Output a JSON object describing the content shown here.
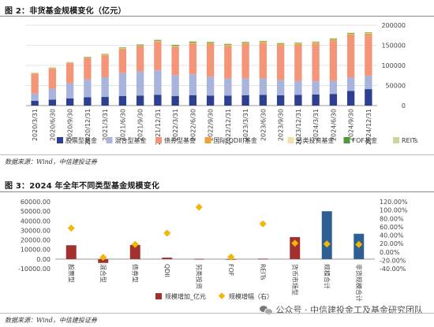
{
  "figure2": {
    "title": "图 2：非货基金规模变化（亿元）",
    "source": "数据来源：Wind，中信建投证券"
  },
  "figure3": {
    "title": "图 3：2024 年全年不同类型基金规模变化",
    "source": "数据来源：Wind，中信建投证券"
  },
  "watermark": {
    "text": "公众号 · 中信建投金工及基金研究团队",
    "icon": "wechat-icon"
  },
  "chart_data": [
    {
      "type": "bar",
      "stacked": true,
      "categories": [
        "2020/3/31",
        "2020/6/30",
        "2020/9/30",
        "2020/12/31",
        "2021/3/31",
        "2021/6/30",
        "2021/9/30",
        "2021/12/31",
        "2022/3/31",
        "2022/6/30",
        "2022/9/30",
        "2022/12/31",
        "2023/3/31",
        "2023/6/30",
        "2023/9/30",
        "2023/12/31",
        "2024/3/31",
        "2024/6/30",
        "2024/9/30",
        "2024/12/31"
      ],
      "ylim": [
        0,
        200000
      ],
      "yticks": [
        0,
        50000,
        100000,
        150000,
        200000
      ],
      "grid": true,
      "legend_position": "bottom",
      "series": [
        {
          "name": "股票型基金",
          "color": "#2f3f8f",
          "values": [
            12000,
            15000,
            18000,
            21000,
            21500,
            24000,
            25000,
            27000,
            24000,
            26000,
            25000,
            24500,
            26000,
            26500,
            25500,
            26500,
            27500,
            29000,
            36500,
            41000
          ]
        },
        {
          "name": "混合型基金",
          "color": "#a9b4dc",
          "values": [
            18000,
            27000,
            38000,
            44000,
            49000,
            57000,
            60000,
            61000,
            52000,
            52000,
            47000,
            43000,
            42000,
            41000,
            38000,
            35000,
            33000,
            32500,
            34000,
            33000
          ]
        },
        {
          "name": "债券型基金",
          "color": "#f4957a",
          "values": [
            49000,
            50000,
            49000,
            53000,
            54000,
            59000,
            62000,
            70000,
            69000,
            75000,
            80000,
            80000,
            84000,
            87000,
            86000,
            88500,
            92000,
            99000,
            103000,
            100000
          ]
        },
        {
          "name": "国际(QDII)基金",
          "color": "#e8a33a",
          "values": [
            1300,
            1400,
            1500,
            1700,
            1800,
            2000,
            2100,
            2200,
            2600,
            2800,
            2900,
            3000,
            3100,
            3200,
            3300,
            3500,
            3700,
            4000,
            4500,
            5000
          ]
        },
        {
          "name": "另类投资基金",
          "color": "#f5dfa6",
          "values": [
            900,
            950,
            1000,
            1000,
            1000,
            1050,
            1100,
            1150,
            1100,
            1100,
            1050,
            1000,
            1000,
            950,
            950,
            950,
            950,
            1000,
            1050,
            1100
          ]
        },
        {
          "name": "FOF基金",
          "color": "#4e9a3a",
          "values": [
            400,
            500,
            650,
            800,
            1100,
            1400,
            1700,
            2100,
            2200,
            2200,
            2100,
            1900,
            1800,
            1700,
            1600,
            1500,
            1400,
            1350,
            1350,
            1300
          ]
        },
        {
          "name": "REITs",
          "color": "#c8d79a",
          "values": [
            0,
            0,
            0,
            0,
            0,
            200,
            300,
            400,
            500,
            600,
            700,
            800,
            850,
            900,
            950,
            1000,
            1050,
            1100,
            1150,
            1200
          ]
        }
      ]
    },
    {
      "type": "bar",
      "categories": [
        "股票型",
        "混合型",
        "债券型",
        "QDII",
        "另类投资",
        "FOF",
        "REITs",
        "货币市场型",
        "规模合计",
        "非货规模合计"
      ],
      "left_axis": {
        "ylim": [
          -10000,
          60000
        ],
        "ticks": [
          "-10000.00",
          "0.00",
          "10000.00",
          "20000.00",
          "30000.00",
          "40000.00",
          "50000.00",
          "60000.00"
        ]
      },
      "right_axis": {
        "ylim": [
          -40,
          120
        ],
        "ticks": [
          "-40.00%",
          "-20.00%",
          "0.00%",
          "20.00%",
          "40.00%",
          "60.00%",
          "80.00%",
          "100.00%",
          "120.00%"
        ]
      },
      "legend_position": "bottom",
      "series": [
        {
          "name": "规模增加_亿元",
          "kind": "bar",
          "axis": "left",
          "color": "#a1302f",
          "values": [
            14500,
            -4000,
            14800,
            1600,
            200,
            -150,
            400,
            23000,
            50000,
            26500
          ],
          "colors": [
            "#a1302f",
            "#a1302f",
            "#a1302f",
            "#a1302f",
            "#a1302f",
            "#a1302f",
            "#a1302f",
            "#a1302f",
            "#2e5f93",
            "#2e5f93"
          ]
        },
        {
          "name": "规模增幅（右）",
          "kind": "marker",
          "axis": "right",
          "color": "#f2b705",
          "values": [
            57,
            -13,
            18,
            45,
            107,
            -12,
            67,
            21,
            19,
            18
          ]
        }
      ]
    }
  ]
}
